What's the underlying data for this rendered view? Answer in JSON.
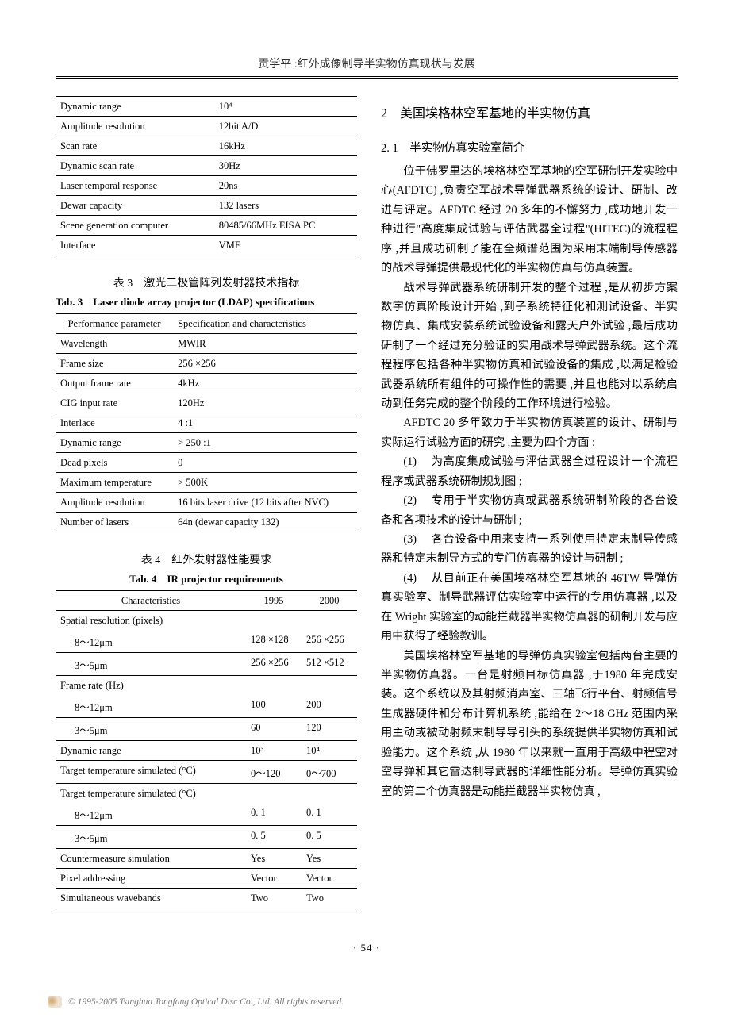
{
  "header": {
    "running_title": "贡学平 :红外成像制导半实物仿真现状与发展"
  },
  "table1": {
    "rows": [
      {
        "param": "Dynamic range",
        "spec": "10⁴"
      },
      {
        "param": "Amplitude resolution",
        "spec": "12bit A/D"
      },
      {
        "param": "Scan rate",
        "spec": "16kHz"
      },
      {
        "param": "Dynamic scan rate",
        "spec": "30Hz"
      },
      {
        "param": "Laser temporal response",
        "spec": "20ns"
      },
      {
        "param": "Dewar capacity",
        "spec": "132 lasers"
      },
      {
        "param": "Scene generation computer",
        "spec": "80485/66MHz EISA PC"
      },
      {
        "param": "Interface",
        "spec": "VME"
      }
    ]
  },
  "table3": {
    "caption_cn": "表 3　激光二极管阵列发射器技术指标",
    "caption_en": "Tab. 3　Laser diode array projector (LDAP) specifications",
    "header": {
      "c1": "Performance parameter",
      "c2": "Specification and characteristics"
    },
    "rows": [
      {
        "param": "Wavelength",
        "spec": "MWIR"
      },
      {
        "param": "Frame size",
        "spec": "256 ×256"
      },
      {
        "param": "Output frame rate",
        "spec": "4kHz"
      },
      {
        "param": "CIG input rate",
        "spec": "120Hz"
      },
      {
        "param": "Interlace",
        "spec": "4 :1"
      },
      {
        "param": "Dynamic range",
        "spec": "> 250 :1"
      },
      {
        "param": "Dead pixels",
        "spec": "0"
      },
      {
        "param": "Maximum temperature",
        "spec": "> 500K"
      },
      {
        "param": "Amplitude resolution",
        "spec": "16 bits laser drive (12 bits after NVC)"
      },
      {
        "param": "Number of lasers",
        "spec": "64n (dewar capacity 132)"
      }
    ]
  },
  "table4": {
    "caption_cn": "表 4　红外发射器性能要求",
    "caption_en": "Tab. 4　IR projector requirements",
    "header": {
      "c1": "Characteristics",
      "c2": "1995",
      "c3": "2000"
    },
    "rows": [
      {
        "c1": "Spatial resolution (pixels)",
        "c2": "",
        "c3": "",
        "group": true
      },
      {
        "c1": "8～12μm",
        "c2": "128 ×128",
        "c3": "256 ×256",
        "sub": true
      },
      {
        "c1": "3～5μm",
        "c2": "256 ×256",
        "c3": "512 ×512",
        "sub": true
      },
      {
        "c1": "Frame rate (Hz)",
        "c2": "",
        "c3": "",
        "group": true
      },
      {
        "c1": "8～12μm",
        "c2": "100",
        "c3": "200",
        "sub": true
      },
      {
        "c1": "3～5μm",
        "c2": "60",
        "c3": "120",
        "sub": true
      },
      {
        "c1": "Dynamic range",
        "c2": "10³",
        "c3": "10⁴"
      },
      {
        "c1": "Target temperature simulated (°C)",
        "c2": "0～120",
        "c3": "0～700"
      },
      {
        "c1": "Target temperature simulated (°C)",
        "c2": "",
        "c3": "",
        "group": true
      },
      {
        "c1": "8～12μm",
        "c2": "0. 1",
        "c3": "0. 1",
        "sub": true
      },
      {
        "c1": "3～5μm",
        "c2": "0. 5",
        "c3": "0. 5",
        "sub": true
      },
      {
        "c1": "Countermeasure simulation",
        "c2": "Yes",
        "c3": "Yes"
      },
      {
        "c1": "Pixel addressing",
        "c2": "Vector",
        "c3": "Vector"
      },
      {
        "c1": "Simultaneous wavebands",
        "c2": "Two",
        "c3": "Two"
      }
    ]
  },
  "right": {
    "h2": "2　美国埃格林空军基地的半实物仿真",
    "h3": "2. 1　半实物仿真实验室简介",
    "p1": "位于佛罗里达的埃格林空军基地的空军研制开发实验中心(AFDTC) ,负责空军战术导弹武器系统的设计、研制、改进与评定。AFDTC 经过 20 多年的不懈努力 ,成功地开发一种进行\"高度集成试验与评估武器全过程\"(HITEC)的流程程序 ,并且成功研制了能在全频谱范围为采用末端制导传感器的战术导弹提供最现代化的半实物仿真与仿真装置。",
    "p2": "战术导弹武器系统研制开发的整个过程 ,是从初步方案数字仿真阶段设计开始 ,到子系统特征化和测试设备、半实物仿真、集成安装系统试验设备和露天户外试验 ,最后成功研制了一个经过充分验证的实用战术导弹武器系统。这个流程程序包括各种半实物仿真和试验设备的集成 ,以满足检验武器系统所有组件的可操作性的需要 ,并且也能对以系统启动到任务完成的整个阶段的工作环境进行检验。",
    "p3": "AFDTC 20 多年致力于半实物仿真装置的设计、研制与实际运行试验方面的研究 ,主要为四个方面 :",
    "li1": "(1) 　为高度集成试验与评估武器全过程设计一个流程程序或武器系统研制规划图 ;",
    "li2": "(2) 　专用于半实物仿真或武器系统研制阶段的各台设备和各项技术的设计与研制 ;",
    "li3": "(3) 　各台设备中用来支持一系列使用特定末制导传感器和特定末制导方式的专门仿真器的设计与研制 ;",
    "li4": "(4) 　从目前正在美国埃格林空军基地的 46TW 导弹仿真实验室、制导武器评估实验室中运行的专用仿真器 ,以及在 Wright 实验室的动能拦截器半实物仿真器的研制开发与应用中获得了经验教训。",
    "p4": "美国埃格林空军基地的导弹仿真实验室包括两台主要的半实物仿真器。一台是射频目标仿真器 ,于1980 年完成安装。这个系统以及其射频消声室、三轴飞行平台、射频信号生成器硬件和分布计算机系统 ,能给在 2～18 GHz 范围内采用主动或被动射频末制导导引头的系统提供半实物仿真和试验能力。这个系统 ,从 1980 年以来就一直用于高级中程空对空导弹和其它雷达制导武器的详细性能分析。导弹仿真实验室的第二个仿真器是动能拦截器半实物仿真 ,"
  },
  "page_number": "· 54 ·",
  "footer": "© 1995-2005 Tsinghua Tongfang Optical Disc Co., Ltd.   All rights reserved."
}
